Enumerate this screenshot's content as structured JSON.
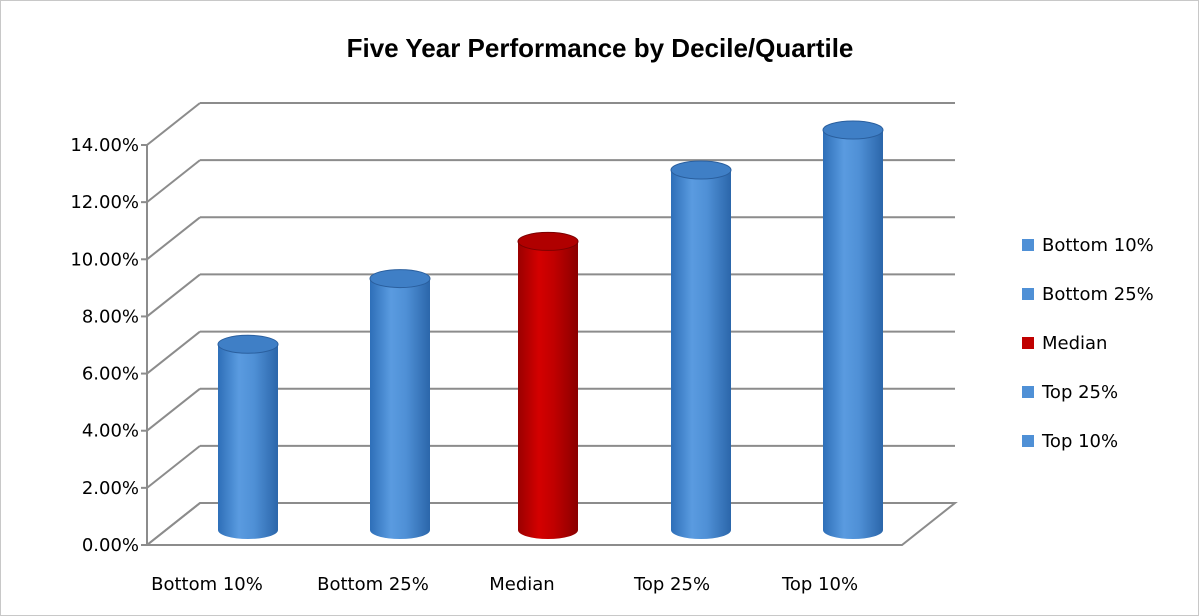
{
  "chart_data": {
    "type": "bar",
    "title": "Five Year Performance by Decile/Quartile",
    "categories": [
      "Bottom 10%",
      "Bottom 25%",
      "Median",
      "Top 25%",
      "Top 10%"
    ],
    "values": [
      6.5,
      8.8,
      10.1,
      12.6,
      14.0
    ],
    "colors": [
      "#4f90d6",
      "#4f90d6",
      "#c00000",
      "#4f90d6",
      "#4f90d6"
    ],
    "ylim": [
      0,
      14
    ],
    "yticks": [
      "0.00%",
      "2.00%",
      "4.00%",
      "6.00%",
      "8.00%",
      "10.00%",
      "12.00%",
      "14.00%"
    ],
    "grid": true,
    "legend": {
      "placement": "right",
      "entries": [
        "Bottom 10%",
        "Bottom 25%",
        "Median",
        "Top 25%",
        "Top 10%"
      ]
    },
    "style": "3d-cylinder"
  }
}
